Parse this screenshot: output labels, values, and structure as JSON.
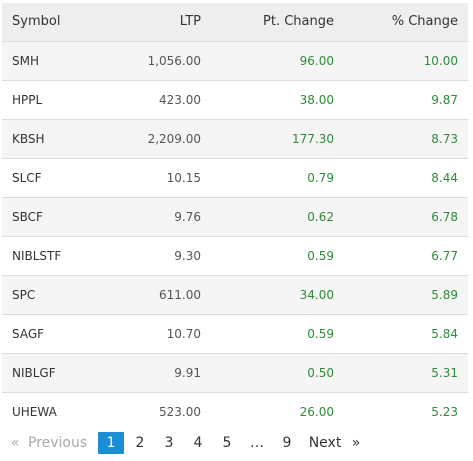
{
  "table": {
    "headers": {
      "symbol": "Symbol",
      "ltp": "LTP",
      "pt_change": "Pt. Change",
      "pct_change": "% Change"
    },
    "rows": [
      {
        "symbol": "SMH",
        "ltp": "1,056.00",
        "pt_change": "96.00",
        "pct_change": "10.00"
      },
      {
        "symbol": "HPPL",
        "ltp": "423.00",
        "pt_change": "38.00",
        "pct_change": "9.87"
      },
      {
        "symbol": "KBSH",
        "ltp": "2,209.00",
        "pt_change": "177.30",
        "pct_change": "8.73"
      },
      {
        "symbol": "SLCF",
        "ltp": "10.15",
        "pt_change": "0.79",
        "pct_change": "8.44"
      },
      {
        "symbol": "SBCF",
        "ltp": "9.76",
        "pt_change": "0.62",
        "pct_change": "6.78"
      },
      {
        "symbol": "NIBLSTF",
        "ltp": "9.30",
        "pt_change": "0.59",
        "pct_change": "6.77"
      },
      {
        "symbol": "SPC",
        "ltp": "611.00",
        "pt_change": "34.00",
        "pct_change": "5.89"
      },
      {
        "symbol": "SAGF",
        "ltp": "10.70",
        "pt_change": "0.59",
        "pct_change": "5.84"
      },
      {
        "symbol": "NIBLGF",
        "ltp": "9.91",
        "pt_change": "0.50",
        "pct_change": "5.31"
      },
      {
        "symbol": "UHEWA",
        "ltp": "523.00",
        "pt_change": "26.00",
        "pct_change": "5.23"
      }
    ]
  },
  "pagination": {
    "prev_arrow": "«",
    "prev_label": "Previous",
    "pages": [
      "1",
      "2",
      "3",
      "4",
      "5"
    ],
    "ellipsis": "…",
    "last_page": "9",
    "next_label": "Next",
    "next_arrow": "»",
    "current_page": "1"
  },
  "colors": {
    "positive": "#2e8b3a",
    "active_page": "#1a8fd6",
    "header_bg": "#eeeeee",
    "stripe_bg": "#f5f5f5"
  }
}
